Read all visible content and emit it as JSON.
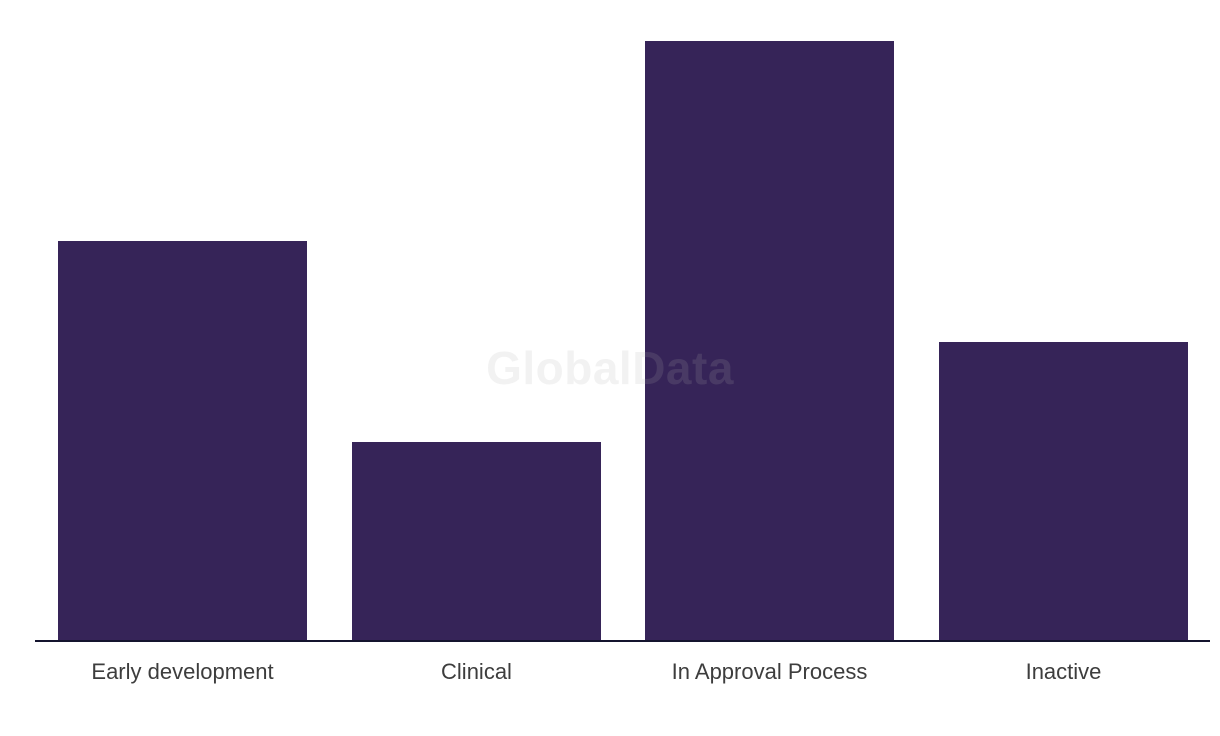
{
  "chart": {
    "watermark_text": "GlobalData",
    "colors": {
      "background": "#FFFFFF",
      "bar": "#362458",
      "axis_line": "#14142E",
      "label_text": "#3D3D3D",
      "watermark": "rgba(175,175,175,0.16)"
    }
  },
  "chart_data": {
    "type": "bar",
    "title": "",
    "xlabel": "",
    "ylabel": "",
    "categories": [
      "Early development",
      "Clinical",
      "In Approval Process",
      "Inactive"
    ],
    "values": [
      399,
      198,
      599,
      298
    ],
    "value_note": "No y-axis, gridlines or data labels shown; values are relative bar heights (ratio approximately 4:2:6:3)",
    "ylim": [
      0,
      599
    ],
    "grid": false,
    "legend": false,
    "bar_color": "#362458",
    "annotations": [
      "GlobalData"
    ]
  }
}
